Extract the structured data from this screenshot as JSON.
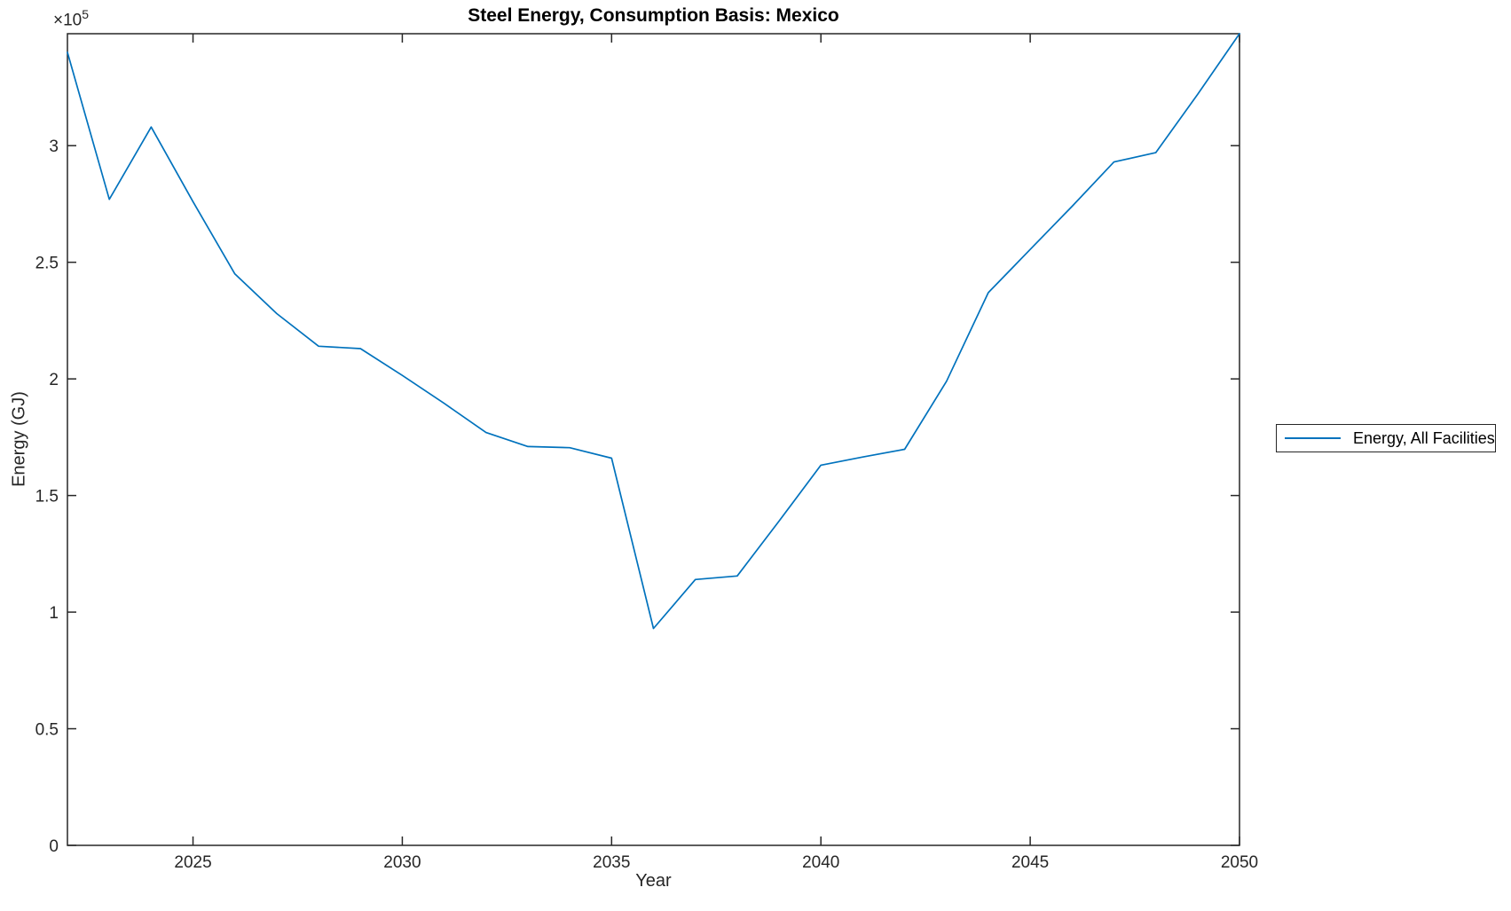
{
  "figure": {
    "title": "Steel Energy, Consumption Basis: Mexico",
    "xlabel": "Year",
    "ylabel": "Energy (GJ)",
    "exponent": {
      "base": "×10",
      "power": "5"
    },
    "legend": {
      "label": "Energy, All Facilities"
    }
  },
  "chart_data": {
    "type": "line",
    "title": "Steel Energy, Consumption Basis: Mexico",
    "xlabel": "Year",
    "ylabel": "Energy (GJ)",
    "y_unit_exponent": "x10^5",
    "grid": false,
    "legend_position": "outside-right",
    "axis_color": "#262626",
    "xlim": [
      2022,
      2050
    ],
    "ylim": [
      0,
      348000
    ],
    "x_ticks": [
      2025,
      2030,
      2035,
      2040,
      2045,
      2050
    ],
    "x_tick_labels": [
      "2025",
      "2030",
      "2035",
      "2040",
      "2045",
      "2050"
    ],
    "y_ticks": [
      0,
      50000,
      100000,
      150000,
      200000,
      250000,
      300000
    ],
    "y_tick_labels": [
      "0",
      "0.5",
      "1",
      "1.5",
      "2",
      "2.5",
      "3"
    ],
    "series": [
      {
        "name": "Energy, All Facilities",
        "color": "#0072BD",
        "x": [
          2022,
          2023,
          2024,
          2025,
          2026,
          2027,
          2028,
          2029,
          2030,
          2031,
          2032,
          2033,
          2034,
          2035,
          2036,
          2037,
          2038,
          2039,
          2040,
          2041,
          2042,
          2043,
          2044,
          2045,
          2046,
          2047,
          2048,
          2049,
          2050
        ],
        "values": [
          340000,
          277000,
          308000,
          276000,
          245000,
          228000,
          214000,
          213000,
          201500,
          189500,
          177000,
          171000,
          170500,
          166000,
          93000,
          114000,
          115500,
          139000,
          163000,
          166500,
          169800,
          199000,
          237000,
          255500,
          274000,
          293000,
          297000,
          322000,
          348000
        ]
      }
    ]
  }
}
